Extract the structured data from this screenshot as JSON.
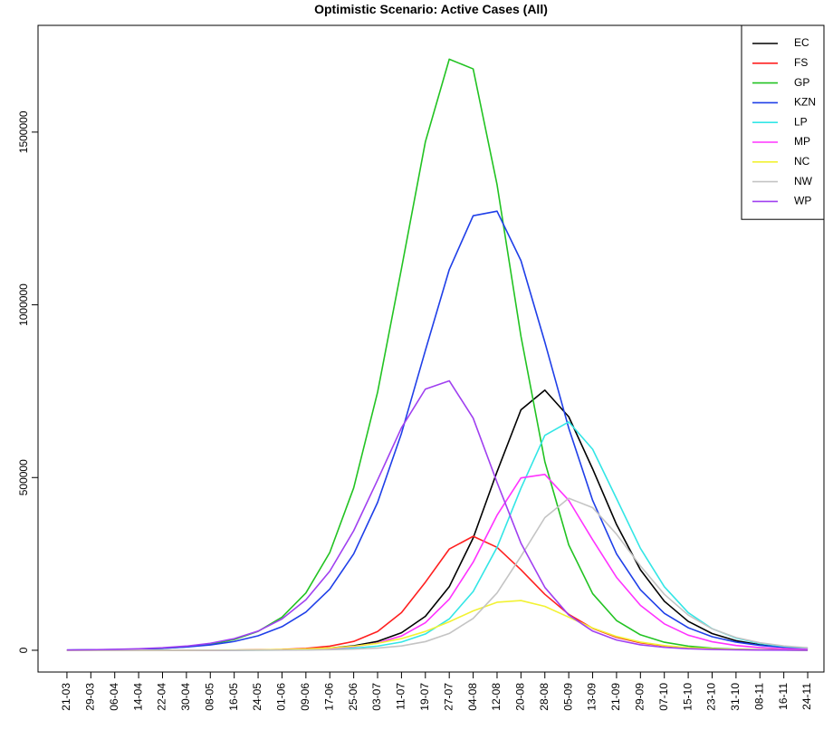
{
  "chart_data": {
    "type": "line",
    "title": "Optimistic Scenario: Active Cases (All)",
    "categories": [
      "21-03",
      "29-03",
      "06-04",
      "14-04",
      "22-04",
      "30-04",
      "08-05",
      "16-05",
      "24-05",
      "01-06",
      "09-06",
      "17-06",
      "25-06",
      "03-07",
      "11-07",
      "19-07",
      "27-07",
      "04-08",
      "12-08",
      "20-08",
      "28-08",
      "05-09",
      "13-09",
      "21-09",
      "29-09",
      "07-10",
      "15-10",
      "23-10",
      "31-10",
      "08-11",
      "16-11",
      "24-11"
    ],
    "series": [
      {
        "name": "EC",
        "color": "#000000",
        "values": [
          3,
          6,
          12,
          25,
          50,
          100,
          200,
          400,
          810,
          1620,
          3240,
          6500,
          13000,
          25700,
          50800,
          98200,
          184000,
          325000,
          517000,
          696000,
          753000,
          676000,
          525000,
          364000,
          233000,
          142000,
          83700,
          48400,
          27700,
          15900,
          9000,
          5070
        ]
      },
      {
        "name": "FS",
        "color": "#ff2020",
        "values": [
          2,
          4,
          9,
          20,
          45,
          99,
          220,
          490,
          1090,
          2420,
          5350,
          11800,
          25600,
          54400,
          109000,
          197000,
          293000,
          330000,
          298000,
          233000,
          162000,
          104000,
          63600,
          37600,
          21800,
          12400,
          7140,
          4040,
          2280,
          1290,
          730,
          410
        ]
      },
      {
        "name": "GP",
        "color": "#22c322",
        "values": [
          580,
          1020,
          1800,
          3200,
          5650,
          10000,
          17700,
          31200,
          54800,
          95900,
          166000,
          283000,
          470000,
          747000,
          1105000,
          1472000,
          1711000,
          1683000,
          1348000,
          909000,
          546000,
          305000,
          164000,
          86100,
          44800,
          23300,
          12000,
          6100,
          3150,
          1600,
          830,
          430
        ]
      },
      {
        "name": "KZN",
        "color": "#1f3fe8",
        "values": [
          780,
          1290,
          2120,
          3490,
          5740,
          9450,
          15500,
          25500,
          41800,
          68300,
          110600,
          177000,
          279000,
          428000,
          628000,
          868000,
          1102000,
          1258000,
          1271000,
          1128000,
          892000,
          643000,
          434000,
          279000,
          175000,
          107000,
          65200,
          39300,
          23700,
          14100,
          8470,
          5060
        ]
      },
      {
        "name": "LP",
        "color": "#33e6e6",
        "values": [
          1,
          3,
          6,
          12,
          23,
          46,
          93,
          186,
          373,
          750,
          1500,
          3000,
          6010,
          12000,
          23800,
          47000,
          90800,
          170000,
          298000,
          469000,
          622000,
          661000,
          582000,
          439000,
          295000,
          184000,
          109000,
          62400,
          35300,
          19700,
          11100,
          6100
        ]
      },
      {
        "name": "MP",
        "color": "#ff33ff",
        "values": [
          3,
          5,
          10,
          21,
          41,
          82,
          165,
          330,
          665,
          1330,
          2670,
          5340,
          10600,
          21100,
          41500,
          79800,
          148000,
          255000,
          391000,
          499000,
          509000,
          434000,
          320000,
          211000,
          130000,
          76500,
          43700,
          24700,
          13800,
          7670,
          4250,
          2350
        ]
      },
      {
        "name": "NC",
        "color": "#f2f233",
        "values": [
          13,
          23,
          40,
          72,
          127,
          224,
          397,
          703,
          1240,
          2190,
          3860,
          6760,
          11700,
          20200,
          33800,
          54500,
          82600,
          114000,
          139000,
          144000,
          127000,
          95800,
          64400,
          40000,
          23700,
          13600,
          7690,
          4310,
          2410,
          1330,
          740,
          410
        ]
      },
      {
        "name": "NW",
        "color": "#c4c4c4",
        "values": [
          1,
          2,
          3,
          6,
          12,
          24,
          49,
          98,
          197,
          396,
          793,
          1590,
          3180,
          6360,
          12600,
          25000,
          48700,
          92200,
          166000,
          272000,
          384000,
          440000,
          413000,
          336000,
          244000,
          162000,
          102000,
          62100,
          36900,
          21700,
          12600,
          7350
        ]
      },
      {
        "name": "WP",
        "color": "#a040f0",
        "values": [
          925,
          1550,
          2600,
          4360,
          7280,
          12100,
          20200,
          33600,
          55500,
          90700,
          146000,
          229000,
          346000,
          493000,
          644000,
          756000,
          780000,
          672000,
          486000,
          310000,
          182000,
          102000,
          55500,
          29800,
          15900,
          8420,
          4440,
          2340,
          1240,
          650,
          345,
          180
        ]
      }
    ],
    "ylim": [
      -63000,
      1809000
    ],
    "yticks": [
      0,
      500000,
      1000000,
      1500000
    ],
    "legend": "top-right",
    "grid": false
  }
}
